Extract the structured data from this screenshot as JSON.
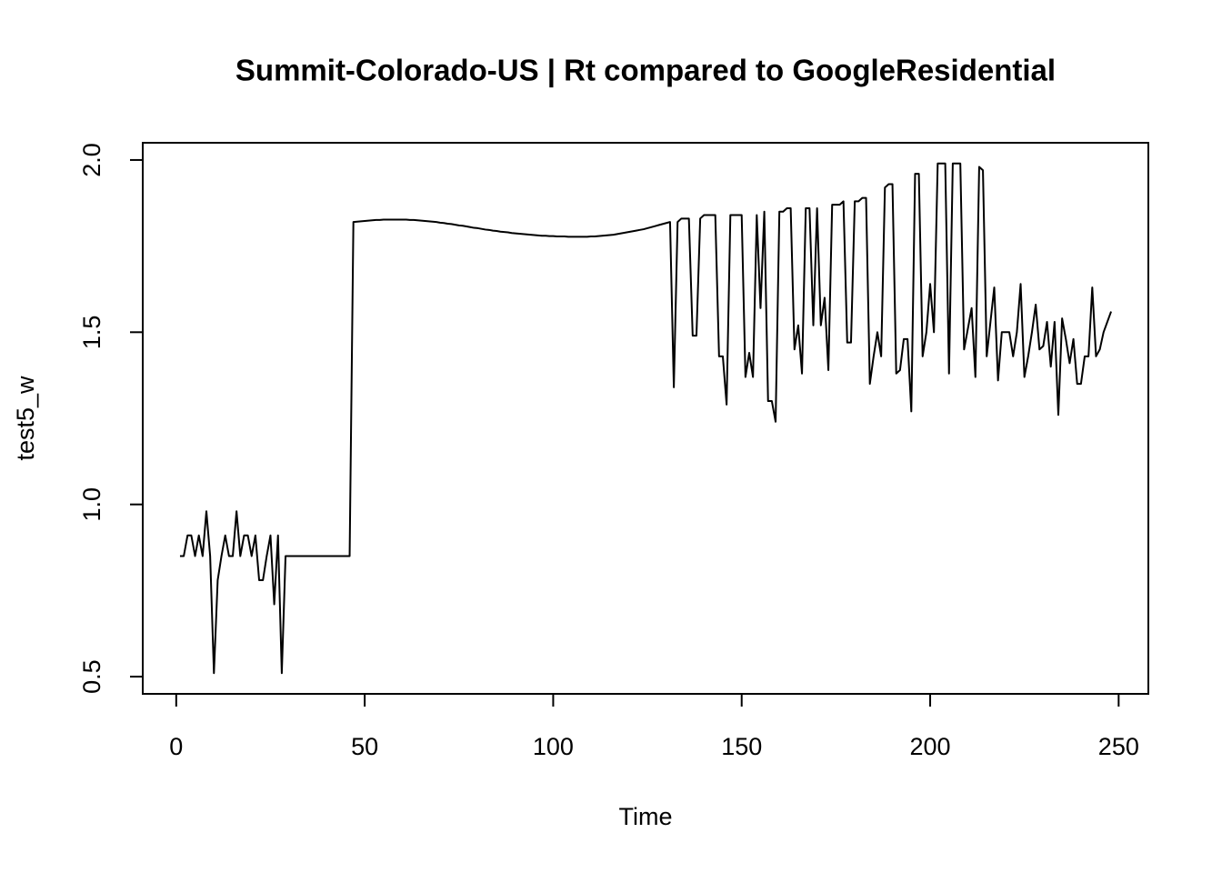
{
  "chart_data": {
    "type": "line",
    "title": "Summit-Colorado-US | Rt compared to GoogleResidential",
    "x_label": "Time",
    "y_label": "test5_w",
    "color": "#000000",
    "xlim": [
      -8.88,
      257.88
    ],
    "ylim": [
      0.45,
      2.05
    ],
    "xticks": [
      0,
      50,
      100,
      150,
      200,
      250
    ],
    "yticks": [
      0.5,
      {
        "value": 1,
        "label": "1.0"
      },
      1.5,
      {
        "value": 2,
        "label": "2.0"
      }
    ],
    "x": [
      1,
      2,
      3,
      4,
      5,
      6,
      7,
      8,
      9,
      10,
      11,
      12,
      13,
      14,
      15,
      16,
      17,
      18,
      19,
      20,
      21,
      22,
      23,
      24,
      25,
      26,
      27,
      28,
      29,
      30,
      31,
      32,
      33,
      34,
      35,
      36,
      37,
      38,
      39,
      40,
      41,
      42,
      43,
      44,
      45,
      46,
      47,
      48,
      49,
      50,
      51,
      52,
      53,
      54,
      55,
      56,
      57,
      58,
      59,
      60,
      61,
      62,
      63,
      64,
      65,
      66,
      67,
      68,
      69,
      70,
      71,
      72,
      73,
      74,
      75,
      76,
      77,
      78,
      79,
      80,
      81,
      82,
      83,
      84,
      85,
      86,
      87,
      88,
      89,
      90,
      91,
      92,
      93,
      94,
      95,
      96,
      97,
      98,
      99,
      100,
      101,
      102,
      103,
      104,
      105,
      106,
      107,
      108,
      109,
      110,
      111,
      112,
      113,
      114,
      115,
      116,
      117,
      118,
      119,
      120,
      121,
      122,
      123,
      124,
      125,
      126,
      127,
      128,
      129,
      130,
      131,
      132,
      133,
      134,
      135,
      136,
      137,
      138,
      139,
      140,
      141,
      142,
      143,
      144,
      145,
      146,
      147,
      148,
      149,
      150,
      151,
      152,
      153,
      154,
      155,
      156,
      157,
      158,
      159,
      160,
      161,
      162,
      163,
      164,
      165,
      166,
      167,
      168,
      169,
      170,
      171,
      172,
      173,
      174,
      175,
      176,
      177,
      178,
      179,
      180,
      181,
      182,
      183,
      184,
      185,
      186,
      187,
      188,
      189,
      190,
      191,
      192,
      193,
      194,
      195,
      196,
      197,
      198,
      199,
      200,
      201,
      202,
      203,
      204,
      205,
      206,
      207,
      208,
      209,
      210,
      211,
      212,
      213,
      214,
      215,
      216,
      217,
      218,
      219,
      220,
      221,
      222,
      223,
      224,
      225,
      226,
      227,
      228,
      229,
      230,
      231,
      232,
      233,
      234,
      235,
      236,
      237,
      238,
      239,
      240,
      241,
      242,
      243,
      244,
      245,
      246,
      247,
      248
    ],
    "values": [
      0.85,
      0.85,
      0.91,
      0.91,
      0.85,
      0.91,
      0.85,
      0.98,
      0.85,
      0.51,
      0.78,
      0.85,
      0.91,
      0.85,
      0.85,
      0.98,
      0.85,
      0.91,
      0.91,
      0.85,
      0.91,
      0.78,
      0.78,
      0.85,
      0.91,
      0.71,
      0.91,
      0.51,
      0.85,
      0.85,
      0.85,
      0.85,
      0.85,
      0.85,
      0.85,
      0.85,
      0.85,
      0.85,
      0.85,
      0.85,
      0.85,
      0.85,
      0.85,
      0.85,
      0.85,
      0.85,
      1.82,
      1.821,
      1.822,
      1.823,
      1.824,
      1.825,
      1.826,
      1.826,
      1.827,
      1.827,
      1.827,
      1.827,
      1.827,
      1.827,
      1.827,
      1.826,
      1.826,
      1.825,
      1.824,
      1.823,
      1.822,
      1.821,
      1.82,
      1.818,
      1.817,
      1.815,
      1.814,
      1.812,
      1.81,
      1.809,
      1.807,
      1.805,
      1.803,
      1.802,
      1.8,
      1.798,
      1.797,
      1.795,
      1.794,
      1.792,
      1.791,
      1.79,
      1.788,
      1.787,
      1.786,
      1.785,
      1.784,
      1.783,
      1.782,
      1.781,
      1.78,
      1.78,
      1.779,
      1.779,
      1.778,
      1.778,
      1.778,
      1.777,
      1.777,
      1.777,
      1.777,
      1.777,
      1.777,
      1.778,
      1.778,
      1.779,
      1.78,
      1.781,
      1.782,
      1.783,
      1.785,
      1.787,
      1.789,
      1.791,
      1.793,
      1.795,
      1.797,
      1.799,
      1.802,
      1.805,
      1.808,
      1.811,
      1.814,
      1.817,
      1.82,
      1.34,
      1.82,
      1.83,
      1.83,
      1.83,
      1.49,
      1.49,
      1.83,
      1.84,
      1.84,
      1.84,
      1.84,
      1.43,
      1.43,
      1.29,
      1.84,
      1.84,
      1.84,
      1.84,
      1.37,
      1.44,
      1.37,
      1.84,
      1.57,
      1.85,
      1.3,
      1.3,
      1.24,
      1.85,
      1.85,
      1.86,
      1.86,
      1.45,
      1.52,
      1.38,
      1.86,
      1.86,
      1.52,
      1.86,
      1.52,
      1.6,
      1.39,
      1.87,
      1.87,
      1.87,
      1.88,
      1.47,
      1.47,
      1.88,
      1.88,
      1.89,
      1.89,
      1.35,
      1.43,
      1.5,
      1.43,
      1.92,
      1.93,
      1.93,
      1.38,
      1.39,
      1.48,
      1.48,
      1.27,
      1.96,
      1.96,
      1.43,
      1.5,
      1.64,
      1.5,
      1.99,
      1.99,
      1.99,
      1.38,
      1.99,
      1.99,
      1.99,
      1.45,
      1.51,
      1.57,
      1.37,
      1.98,
      1.97,
      1.43,
      1.53,
      1.63,
      1.36,
      1.5,
      1.5,
      1.5,
      1.43,
      1.5,
      1.64,
      1.37,
      1.43,
      1.5,
      1.58,
      1.45,
      1.46,
      1.53,
      1.4,
      1.53,
      1.26,
      1.54,
      1.48,
      1.41,
      1.48,
      1.35,
      1.35,
      1.43,
      1.43,
      1.63,
      1.43,
      1.45,
      1.5,
      1.53,
      1.56
    ]
  }
}
